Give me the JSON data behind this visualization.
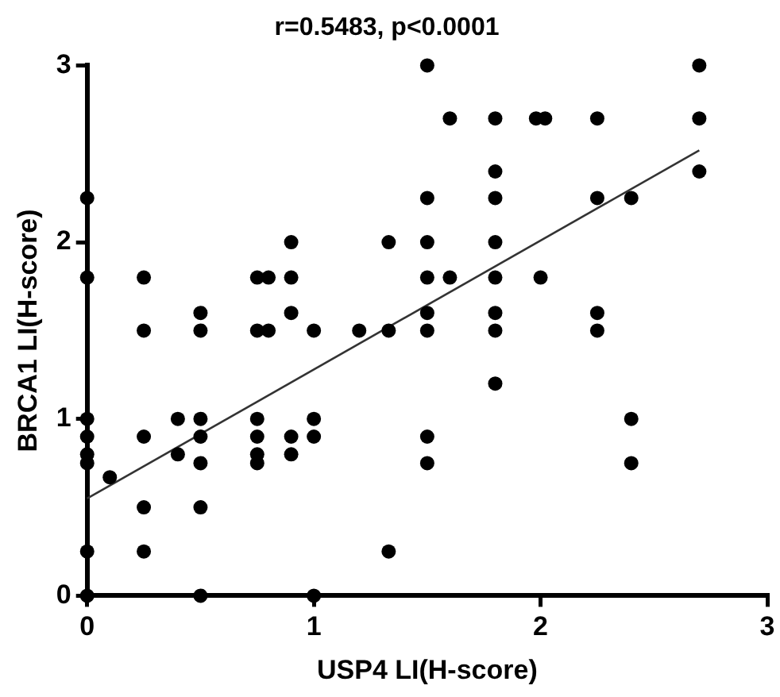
{
  "chart_data": {
    "type": "scatter",
    "title": "r=0.5483, p<0.0001",
    "xlabel": "USP4 LI(H-score)",
    "ylabel": "BRCA1 LI(H-score)",
    "xlim": [
      0,
      3
    ],
    "xticks": [
      0,
      1,
      2,
      3
    ],
    "ylim": [
      0,
      3
    ],
    "yticks": [
      0,
      1,
      2,
      3
    ],
    "grid": false,
    "legend": false,
    "marker": "circle",
    "series": [
      {
        "color": "#000000",
        "x": [
          0,
          0,
          0,
          0,
          0,
          0,
          0,
          0,
          0.1,
          0.25,
          0.25,
          0.25,
          0.25,
          0.25,
          0.4,
          0.4,
          0.5,
          0.5,
          0.5,
          0.5,
          0.5,
          0.5,
          0.5,
          0.75,
          0.75,
          0.75,
          0.75,
          0.75,
          0.75,
          0.8,
          0.8,
          0.9,
          0.9,
          0.9,
          0.9,
          0.9,
          1,
          1,
          1,
          1,
          1.2,
          1.33,
          1.33,
          1.33,
          1.5,
          1.5,
          1.5,
          1.5,
          1.5,
          1.5,
          1.5,
          1.5,
          1.6,
          1.6,
          1.8,
          1.8,
          1.8,
          1.8,
          1.8,
          1.8,
          1.8,
          1.8,
          1.98,
          2.02,
          2,
          2.25,
          2.25,
          2.25,
          2.25,
          2.4,
          2.4,
          2.4,
          2.7,
          2.7,
          2.7
        ],
        "values": [
          2.25,
          1.8,
          1,
          0.9,
          0.8,
          0.75,
          0.25,
          0,
          0.67,
          1.8,
          1.5,
          0.9,
          0.5,
          0.25,
          1,
          0.8,
          1.6,
          1.5,
          1,
          0.9,
          0.75,
          0.5,
          0,
          1.8,
          1.5,
          1,
          0.9,
          0.8,
          0.75,
          1.8,
          1.5,
          2,
          1.8,
          1.6,
          0.9,
          0.8,
          1.5,
          1,
          0.9,
          0,
          1.5,
          2,
          1.5,
          0.25,
          3,
          2.25,
          2,
          1.8,
          1.6,
          1.5,
          0.9,
          0.75,
          2.7,
          1.8,
          2.7,
          2.4,
          2.25,
          2,
          1.8,
          1.6,
          1.5,
          1.2,
          2.7,
          2.7,
          1.8,
          2.7,
          2.25,
          1.6,
          1.5,
          2.25,
          1,
          0.75,
          3,
          2.7,
          2.4
        ]
      },
      {
        "type": "line",
        "color": "#333333",
        "marker": "none",
        "x": [
          0,
          2.7
        ],
        "values": [
          0.55,
          2.52
        ]
      }
    ]
  }
}
